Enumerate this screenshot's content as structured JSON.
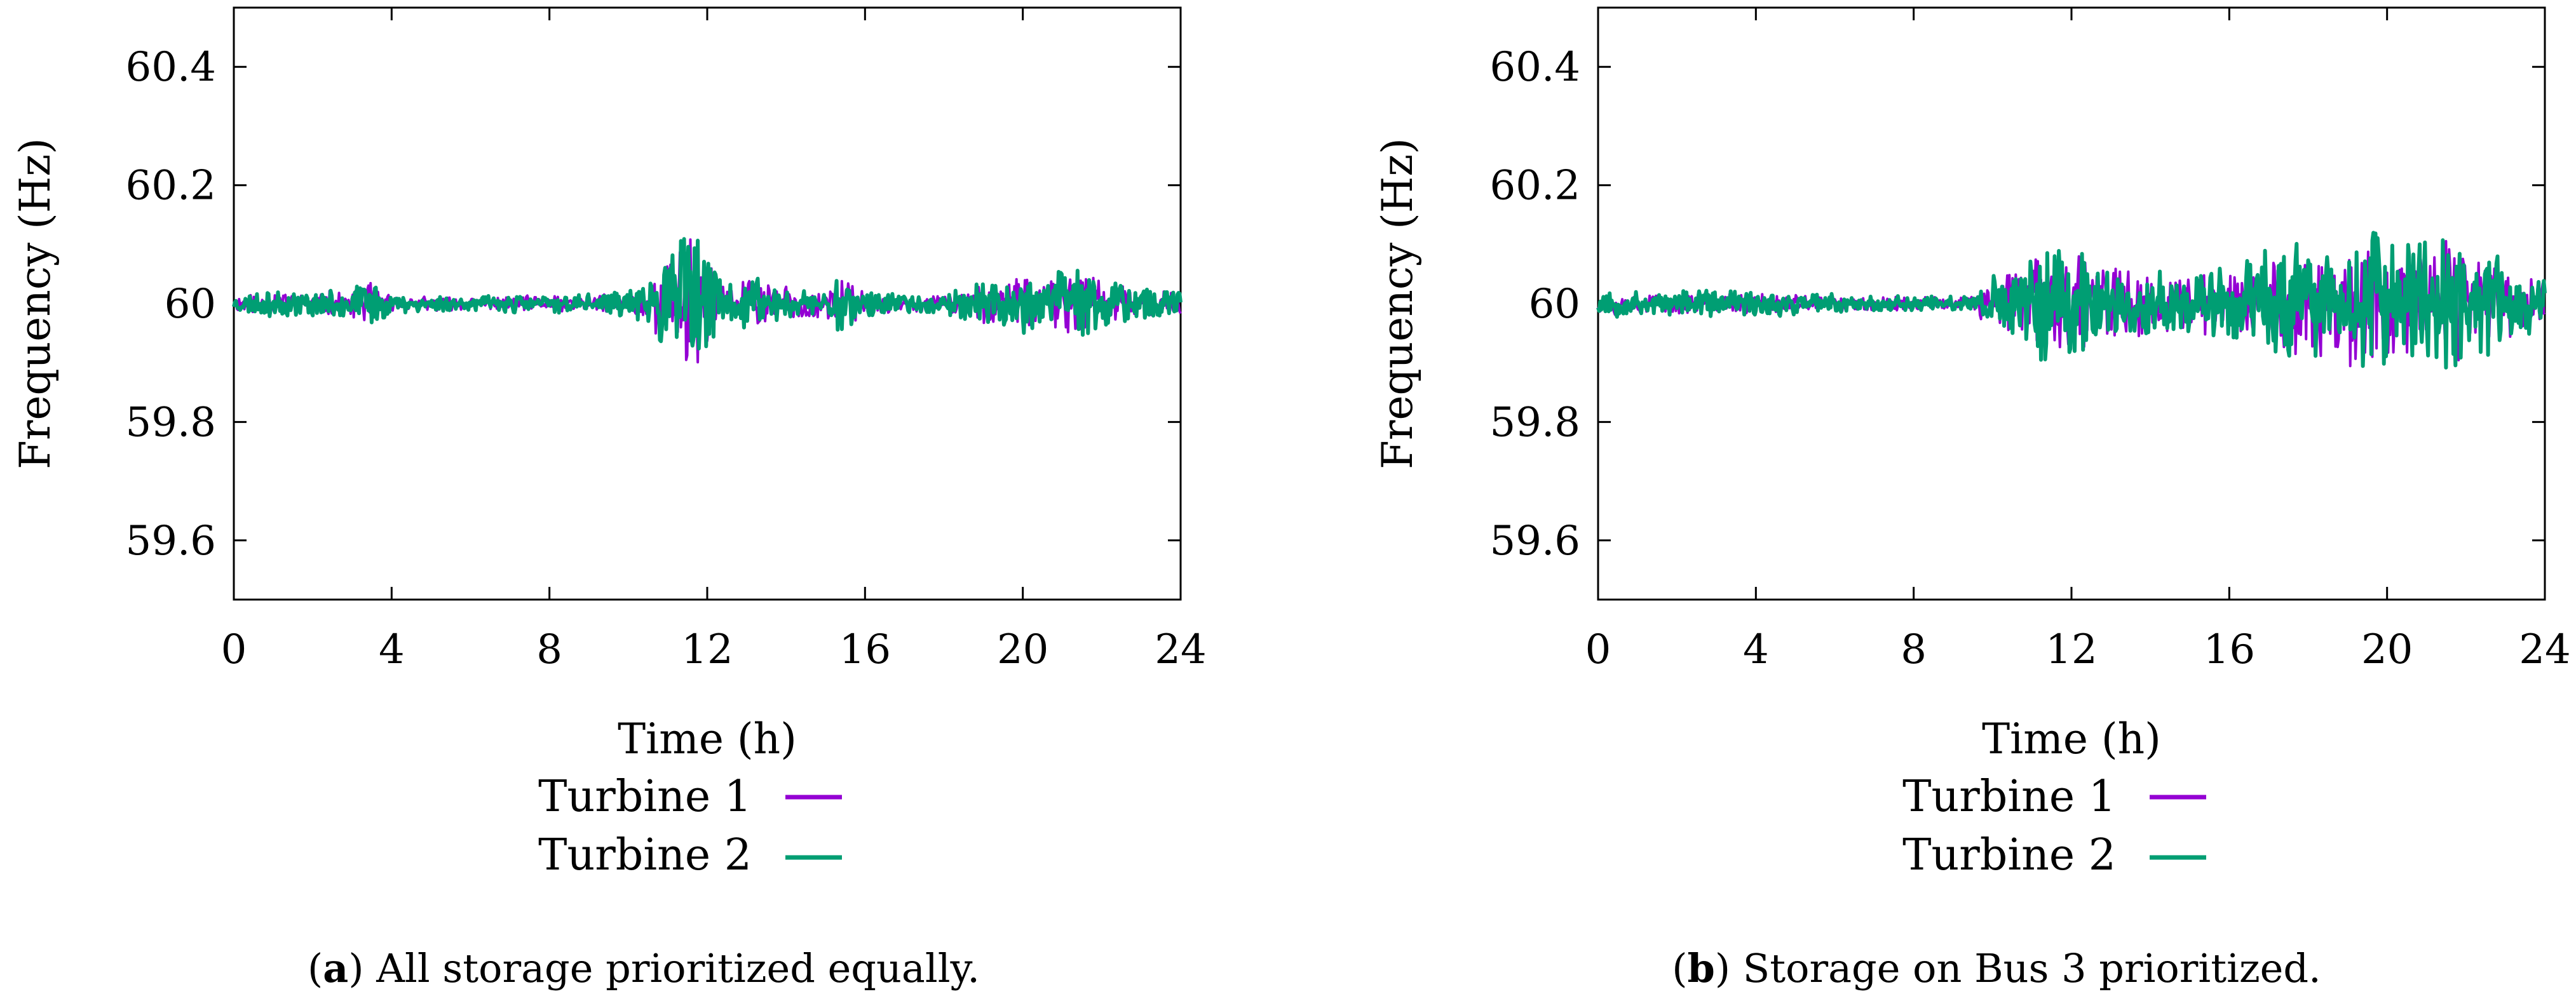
{
  "chart_data": [
    {
      "type": "line",
      "panel": "a",
      "caption_letter": "a",
      "caption_text": "All storage prioritized equally.",
      "xlabel": "Time (h)",
      "ylabel": "Frequency (Hz)",
      "xlim": [
        0,
        24
      ],
      "ylim": [
        59.5,
        60.5
      ],
      "xticks": [
        0,
        4,
        8,
        12,
        16,
        20,
        24
      ],
      "xtick_labels": [
        "0",
        "4",
        "8",
        "12",
        "16",
        "20",
        "24"
      ],
      "yticks": [
        59.6,
        59.8,
        60,
        60.2,
        60.4
      ],
      "ytick_labels": [
        "59.6",
        "59.8",
        "60",
        "60.2",
        "60.4"
      ],
      "legend": [
        "Turbine 1",
        "Turbine 2"
      ],
      "colors": {
        "Turbine 1": "#9400d3",
        "Turbine 2": "#009e73"
      },
      "envelope": {
        "description": "max deviation from 60 Hz per time window (Hz)",
        "t": [
          0,
          1,
          2,
          3,
          3.5,
          4,
          6,
          8,
          9,
          10,
          10.5,
          11,
          11.5,
          12,
          12.5,
          13,
          14,
          15,
          15.5,
          16,
          17,
          18,
          19,
          20,
          20.5,
          21,
          21.5,
          22,
          23,
          24
        ],
        "amp": [
          0.015,
          0.02,
          0.02,
          0.025,
          0.04,
          0.015,
          0.012,
          0.015,
          0.015,
          0.02,
          0.03,
          0.09,
          0.14,
          0.09,
          0.03,
          0.045,
          0.03,
          0.03,
          0.05,
          0.02,
          0.015,
          0.015,
          0.035,
          0.05,
          0.04,
          0.06,
          0.06,
          0.045,
          0.025,
          0.02
        ]
      },
      "series": [
        {
          "name": "Turbine 1",
          "center": 60.0,
          "seed": 11
        },
        {
          "name": "Turbine 2",
          "center": 60.0,
          "seed": 23
        }
      ]
    },
    {
      "type": "line",
      "panel": "b",
      "caption_letter": "b",
      "caption_text": "Storage on Bus 3 prioritized.",
      "xlabel": "Time (h)",
      "ylabel": "Frequency (Hz)",
      "xlim": [
        0,
        24
      ],
      "ylim": [
        59.5,
        60.5
      ],
      "xticks": [
        0,
        4,
        8,
        12,
        16,
        20,
        24
      ],
      "xtick_labels": [
        "0",
        "4",
        "8",
        "12",
        "16",
        "20",
        "24"
      ],
      "yticks": [
        59.6,
        59.8,
        60,
        60.2,
        60.4
      ],
      "ytick_labels": [
        "59.6",
        "59.8",
        "60",
        "60.2",
        "60.4"
      ],
      "legend": [
        "Turbine 1",
        "Turbine 2"
      ],
      "colors": {
        "Turbine 1": "#9400d3",
        "Turbine 2": "#009e73"
      },
      "envelope": {
        "description": "max deviation from 60 Hz per time window (Hz)",
        "t": [
          0,
          2,
          4,
          6,
          8,
          9.5,
          10,
          11,
          11.5,
          12,
          13,
          14,
          15,
          16,
          17,
          18,
          19,
          19.5,
          20,
          21,
          21.5,
          22,
          23,
          24
        ],
        "amp": [
          0.02,
          0.02,
          0.02,
          0.015,
          0.012,
          0.012,
          0.05,
          0.08,
          0.11,
          0.09,
          0.07,
          0.06,
          0.05,
          0.06,
          0.09,
          0.09,
          0.11,
          0.13,
          0.12,
          0.1,
          0.12,
          0.09,
          0.07,
          0.05
        ]
      },
      "series": [
        {
          "name": "Turbine 1",
          "center": 60.0,
          "seed": 37
        },
        {
          "name": "Turbine 2",
          "center": 60.0,
          "seed": 53
        }
      ]
    }
  ]
}
